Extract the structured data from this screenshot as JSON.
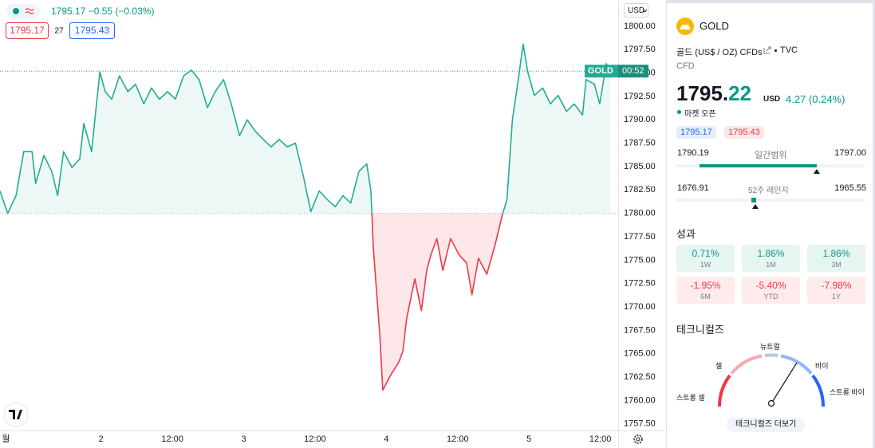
{
  "chart_data": {
    "type": "line",
    "baseline": 1780,
    "price_line": 1795.2,
    "currency": "USD",
    "countdown": "00:52",
    "x": [
      7.0,
      8.3,
      9.7,
      11.0,
      12.4,
      13.0,
      14.4,
      15.7,
      16.7,
      17.7,
      19.1,
      20.4,
      21.1,
      22.4,
      23.1,
      23.8,
      24.7,
      25.8,
      27.1,
      28.5,
      29.8,
      31.2,
      32.5,
      33.8,
      35.2,
      36.5,
      37.9,
      39.2,
      40.5,
      41.9,
      43.2,
      44.6,
      45.9,
      47.3,
      48.6,
      49.9,
      51.3,
      52.6,
      54.0,
      55.3,
      56.7,
      58.0,
      59.3,
      60.7,
      62.0,
      63.4,
      64.7,
      66.0,
      67.4,
      68.7,
      69.4,
      69.8,
      70.3,
      70.9,
      71.4,
      72.8,
      74.1,
      74.8,
      75.4,
      76.8,
      77.9,
      78.8,
      79.5,
      80.5,
      81.5,
      82.8,
      84.2,
      85.5,
      86.4,
      87.5,
      88.9,
      90.2,
      91.5,
      92.3,
      93.2,
      94.2,
      95.0,
      95.8,
      96.9,
      98.3,
      99.6,
      100.9,
      102.3,
      103.6,
      105.0,
      105.6,
      107.0,
      107.9,
      109.0,
      109.7
    ],
    "series": [
      {
        "name": "GOLD",
        "color": "#22ab94",
        "color_below": "#f23645",
        "values": [
          1782.4,
          1780.0,
          1781.9,
          1786.6,
          1786.6,
          1783.2,
          1786.2,
          1784.5,
          1781.9,
          1786.6,
          1784.9,
          1785.8,
          1789.6,
          1786.6,
          1790.9,
          1795.1,
          1793.0,
          1792.2,
          1794.7,
          1793.0,
          1793.8,
          1791.7,
          1793.4,
          1792.2,
          1793.0,
          1792.2,
          1794.7,
          1795.3,
          1794.3,
          1791.3,
          1793.0,
          1794.3,
          1791.7,
          1788.3,
          1790.0,
          1788.8,
          1787.9,
          1787.1,
          1787.9,
          1787.1,
          1787.5,
          1784.1,
          1780.2,
          1782.4,
          1781.5,
          1780.7,
          1781.9,
          1781.1,
          1784.5,
          1785.3,
          1782.4,
          1776.4,
          1772.1,
          1767.0,
          1761.1,
          1762.8,
          1764.1,
          1765.3,
          1768.7,
          1773.0,
          1769.6,
          1773.9,
          1775.6,
          1777.3,
          1773.9,
          1777.3,
          1775.6,
          1774.7,
          1771.3,
          1775.2,
          1773.5,
          1776.4,
          1779.8,
          1781.5,
          1790.0,
          1794.3,
          1798.1,
          1795.1,
          1792.6,
          1793.4,
          1791.7,
          1792.6,
          1790.9,
          1791.7,
          1790.5,
          1794.3,
          1793.8,
          1791.7,
          1796.0,
          1795.1
        ]
      }
    ],
    "xlim": [
      7,
      111
    ],
    "xticks": [
      {
        "value": 8,
        "label": "월"
      },
      {
        "value": 24,
        "label": "2"
      },
      {
        "value": 36,
        "label": "12:00"
      },
      {
        "value": 48,
        "label": "3"
      },
      {
        "value": 60,
        "label": "12:00"
      },
      {
        "value": 72,
        "label": "4"
      },
      {
        "value": 84,
        "label": "12:00"
      },
      {
        "value": 96,
        "label": "5"
      },
      {
        "value": 108,
        "label": "12:00"
      }
    ],
    "ylim": [
      1756.8,
      1802.8
    ],
    "yticks": [
      {
        "value": 1757.5,
        "label": "1757.50"
      },
      {
        "value": 1760,
        "label": "1760.00"
      },
      {
        "value": 1762.5,
        "label": "1762.50"
      },
      {
        "value": 1765,
        "label": "1765.00"
      },
      {
        "value": 1767.5,
        "label": "1767.50"
      },
      {
        "value": 1770,
        "label": "1770.00"
      },
      {
        "value": 1772.5,
        "label": "1772.50"
      },
      {
        "value": 1775,
        "label": "1775.00"
      },
      {
        "value": 1777.5,
        "label": "1777.50"
      },
      {
        "value": 1780,
        "label": "1780.00"
      },
      {
        "value": 1782.5,
        "label": "1782.50"
      },
      {
        "value": 1785,
        "label": "1785.00"
      },
      {
        "value": 1787.5,
        "label": "1787.50"
      },
      {
        "value": 1790,
        "label": "1790.00"
      },
      {
        "value": 1792.5,
        "label": "1792.50"
      },
      {
        "value": 1795,
        "label": "1795.00"
      },
      {
        "value": 1797.5,
        "label": "1797.50"
      },
      {
        "value": 1800,
        "label": "1800.00"
      }
    ],
    "grid": false
  },
  "header": {
    "quote": "1795.17 −0.55 (−0.03%)",
    "bid": "1795.17",
    "volume": "27",
    "ask": "1795.43"
  },
  "panel": {
    "symbol": "GOLD",
    "description": "골드 (US$ / OZ) CFDs",
    "exchange": "TVC",
    "kind": "CFD",
    "price_main": "1795.",
    "price_fraction": "22",
    "price_currency": "USD",
    "change": "4.27 (0.24%)",
    "market_status": "마켓 오픈",
    "bid": "1795.17",
    "ask": "1795.43",
    "day_range": {
      "low": "1790.19",
      "label": "일간범위",
      "high": "1797.00"
    },
    "year_range": {
      "low": "1676.91",
      "label": "52주 레인지",
      "high": "1965.55"
    },
    "performance_title": "성과",
    "performance": [
      {
        "value": "0.71%",
        "period": "1W"
      },
      {
        "value": "1.86%",
        "period": "1M"
      },
      {
        "value": "1.86%",
        "period": "3M"
      },
      {
        "value": "-1.95%",
        "period": "6M"
      },
      {
        "value": "-5.40%",
        "period": "YTD"
      },
      {
        "value": "-7.98%",
        "period": "1Y"
      }
    ],
    "technicals_title": "테크니컬즈",
    "gauge": {
      "strong_sell": "스트롱 셀",
      "sell": "셀",
      "neutral": "뉴트럴",
      "buy": "바이",
      "strong_buy": "스트롱 바이"
    },
    "more_button": "테크니컬즈 더보기"
  }
}
